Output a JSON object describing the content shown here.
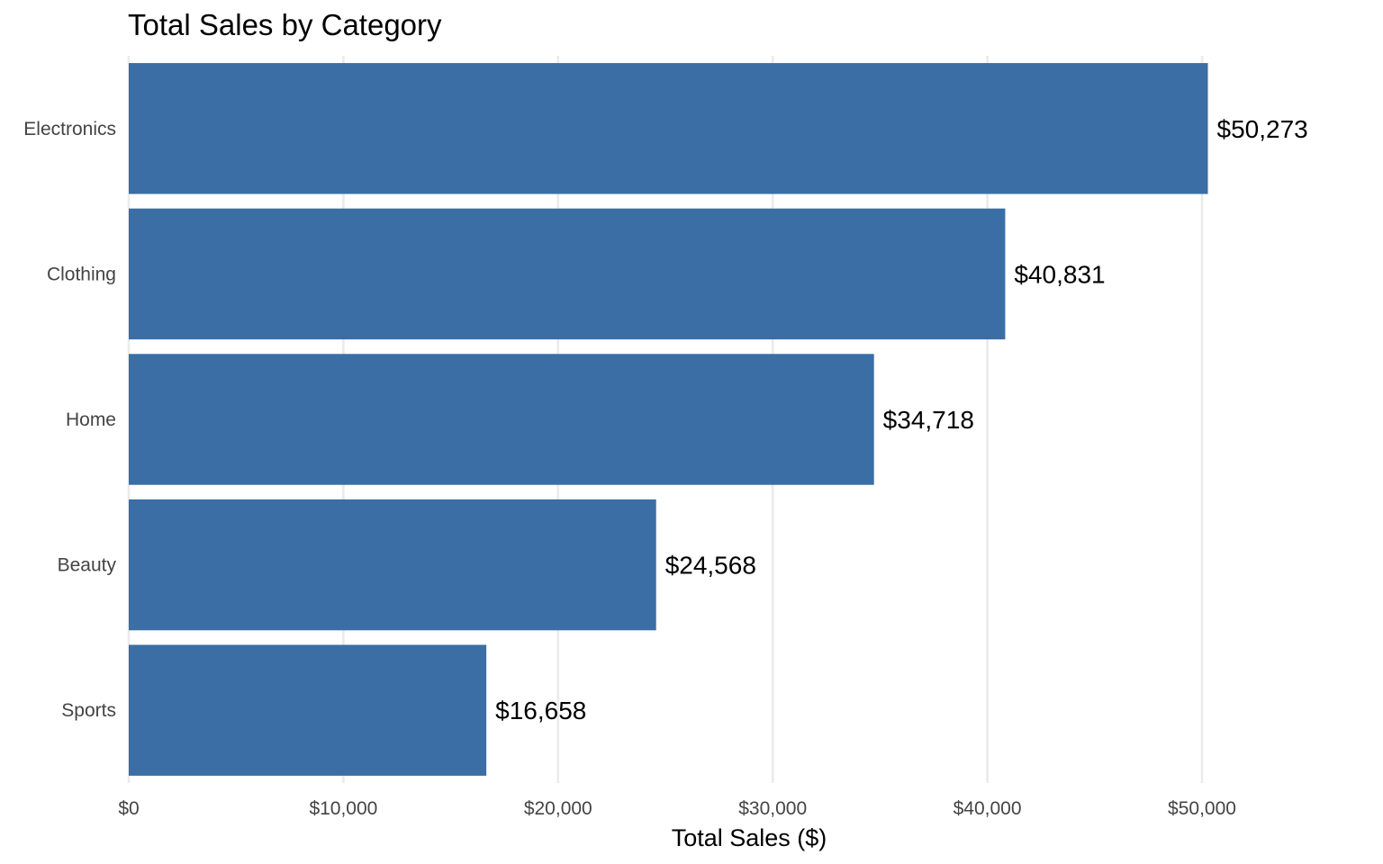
{
  "chart_data": {
    "type": "bar",
    "orientation": "horizontal",
    "title": "Total Sales by Category",
    "xlabel": "Total Sales ($)",
    "ylabel": "",
    "categories": [
      "Electronics",
      "Clothing",
      "Home",
      "Beauty",
      "Sports"
    ],
    "values": [
      50273,
      40831,
      34718,
      24568,
      16658
    ],
    "value_labels": [
      "$50,273",
      "$40,831",
      "$34,718",
      "$24,568",
      "$16,658"
    ],
    "x_ticks": [
      0,
      10000,
      20000,
      30000,
      40000,
      50000
    ],
    "x_tick_labels": [
      "$0",
      "$10,000",
      "$20,000",
      "$30,000",
      "$40,000",
      "$50,000"
    ],
    "xlim": [
      0,
      55000
    ],
    "grid": "vertical major gridlines",
    "legend": "none",
    "bar_color": "#3a6ea5",
    "grid_color": "#ebebeb"
  }
}
